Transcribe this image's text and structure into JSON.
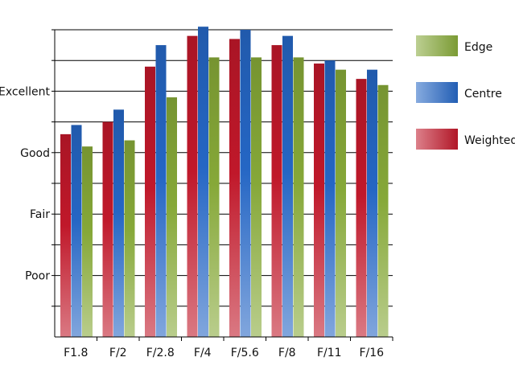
{
  "chart_data": {
    "type": "bar",
    "title": "",
    "xlabel": "",
    "ylabel": "",
    "categories": [
      "F1.8",
      "F/2",
      "F/2.8",
      "F/4",
      "F/5.6",
      "F/8",
      "F/11",
      "F/16"
    ],
    "ylim": [
      0,
      10
    ],
    "y_tick_labels": [
      {
        "value": 2,
        "label": "Poor"
      },
      {
        "value": 4,
        "label": "Fair"
      },
      {
        "value": 6,
        "label": "Good"
      },
      {
        "value": 8,
        "label": "Excellent"
      }
    ],
    "gridlines": true,
    "legend_position": "right",
    "series": [
      {
        "name": "Weighted",
        "color": "#c0182a",
        "values": [
          6.6,
          7.0,
          8.8,
          9.8,
          9.7,
          9.5,
          8.9,
          8.4
        ]
      },
      {
        "name": "Centre",
        "color": "#2566c4",
        "values": [
          6.9,
          7.4,
          9.5,
          10.1,
          10.0,
          9.8,
          9.0,
          8.7
        ]
      },
      {
        "name": "Edge",
        "color": "#86a838",
        "values": [
          6.2,
          6.4,
          7.8,
          9.1,
          9.1,
          9.1,
          8.7,
          8.2
        ]
      }
    ],
    "legend": [
      {
        "name": "Edge",
        "color": "#86a838"
      },
      {
        "name": "Centre",
        "color": "#2566c4"
      },
      {
        "name": "Weighted",
        "color": "#c0182a"
      }
    ]
  }
}
